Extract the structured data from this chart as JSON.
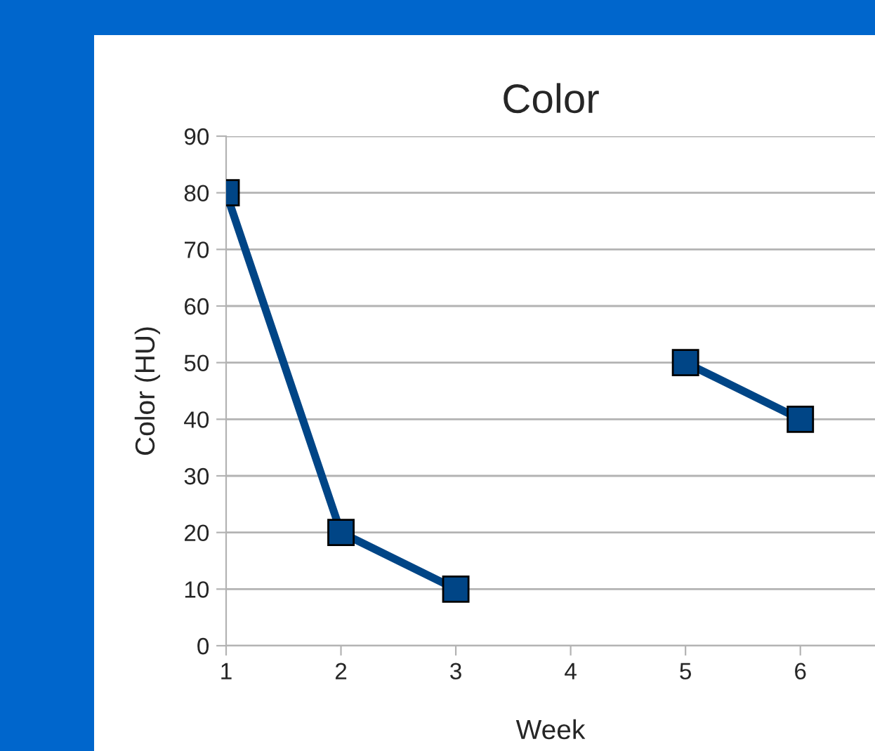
{
  "chart_data": {
    "type": "line",
    "title": "Color",
    "xlabel": "Week",
    "ylabel": "Color (HU)",
    "x": [
      1,
      2,
      3,
      4,
      5,
      6
    ],
    "series": [
      {
        "color": "#004586",
        "values": [
          80,
          20,
          10,
          null,
          50,
          40
        ]
      }
    ],
    "xlim": [
      1,
      6.65
    ],
    "xticks": [
      1,
      2,
      3,
      4,
      5,
      6
    ],
    "ylim": [
      0,
      90
    ],
    "yticks": [
      0,
      10,
      20,
      30,
      40,
      50,
      60,
      70,
      80,
      90
    ],
    "grid": "y",
    "marker": "square",
    "line_style": "solid"
  }
}
